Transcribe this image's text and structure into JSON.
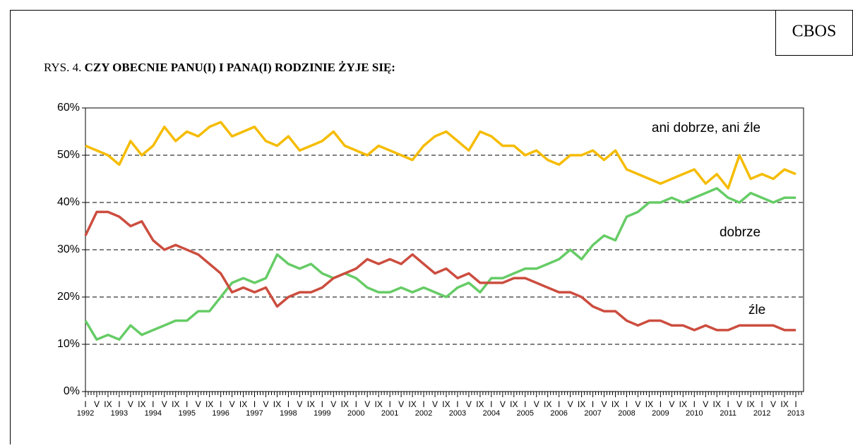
{
  "chart_data": {
    "type": "line",
    "source": "CBOS",
    "figure_label": "RYS. 4.",
    "title": "CZY OBECNIE PANU(I) I PANA(I) RODZINIE ŻYJE SIĘ:",
    "categories": [
      "I",
      "V",
      "IX",
      "I",
      "V",
      "IX",
      "I",
      "V",
      "IX",
      "I",
      "V",
      "IX",
      "I",
      "V",
      "IX",
      "I",
      "V",
      "IX",
      "I",
      "V",
      "IX",
      "I",
      "V",
      "IX",
      "I",
      "V",
      "IX",
      "I",
      "V",
      "IX",
      "I",
      "V",
      "IX",
      "I",
      "V",
      "IX",
      "I",
      "V",
      "IX",
      "I",
      "V",
      "IX",
      "I",
      "V",
      "IX",
      "I",
      "V",
      "IX",
      "I",
      "V",
      "IX",
      "I",
      "V",
      "IX",
      "I",
      "V",
      "IX",
      "I",
      "V",
      "IX",
      "I",
      "V",
      "IX",
      "I"
    ],
    "years": [
      "1992",
      "1993",
      "1994",
      "1995",
      "1996",
      "1997",
      "1998",
      "1999",
      "2000",
      "2001",
      "2002",
      "2003",
      "2004",
      "2005",
      "2006",
      "2007",
      "2008",
      "2009",
      "2010",
      "2011",
      "2012",
      "2013"
    ],
    "series": [
      {
        "name": "ani dobrze, ani źle",
        "color": "#f5bc00",
        "values": [
          52,
          51,
          50,
          48,
          53,
          50,
          52,
          56,
          53,
          55,
          54,
          56,
          57,
          54,
          55,
          56,
          53,
          52,
          54,
          51,
          52,
          53,
          55,
          52,
          51,
          50,
          52,
          51,
          50,
          49,
          52,
          54,
          55,
          53,
          51,
          55,
          54,
          52,
          52,
          50,
          51,
          49,
          48,
          50,
          50,
          51,
          49,
          51,
          47,
          46,
          45,
          44,
          45,
          46,
          47,
          44,
          46,
          43,
          50,
          45,
          46,
          45,
          47,
          46
        ]
      },
      {
        "name": "dobrze",
        "color": "#66cc66",
        "values": [
          15,
          11,
          12,
          11,
          14,
          12,
          13,
          14,
          15,
          15,
          17,
          17,
          20,
          23,
          24,
          23,
          24,
          29,
          27,
          26,
          27,
          25,
          24,
          25,
          24,
          22,
          21,
          21,
          22,
          21,
          22,
          21,
          20,
          22,
          23,
          21,
          24,
          24,
          25,
          26,
          26,
          27,
          28,
          30,
          28,
          31,
          33,
          32,
          37,
          38,
          40,
          40,
          41,
          40,
          41,
          42,
          43,
          41,
          40,
          42,
          41,
          40,
          41,
          41
        ]
      },
      {
        "name": "źle",
        "color": "#cc4d3f",
        "values": [
          33,
          38,
          38,
          37,
          35,
          36,
          32,
          30,
          31,
          30,
          29,
          27,
          25,
          21,
          22,
          21,
          22,
          18,
          20,
          21,
          21,
          22,
          24,
          25,
          26,
          28,
          27,
          28,
          27,
          29,
          27,
          25,
          26,
          24,
          25,
          23,
          23,
          23,
          24,
          24,
          23,
          22,
          21,
          21,
          20,
          18,
          17,
          17,
          15,
          14,
          15,
          15,
          14,
          14,
          13,
          14,
          13,
          13,
          14,
          14,
          14,
          14,
          13,
          13
        ]
      }
    ],
    "ylim": [
      0,
      60
    ],
    "yticks": [
      {
        "value": 0,
        "label": "0%"
      },
      {
        "value": 10,
        "label": "10%"
      },
      {
        "value": 20,
        "label": "20%"
      },
      {
        "value": 30,
        "label": "30%"
      },
      {
        "value": 40,
        "label": "40%"
      },
      {
        "value": 50,
        "label": "50%"
      },
      {
        "value": 60,
        "label": "60%"
      }
    ],
    "grid": true
  }
}
